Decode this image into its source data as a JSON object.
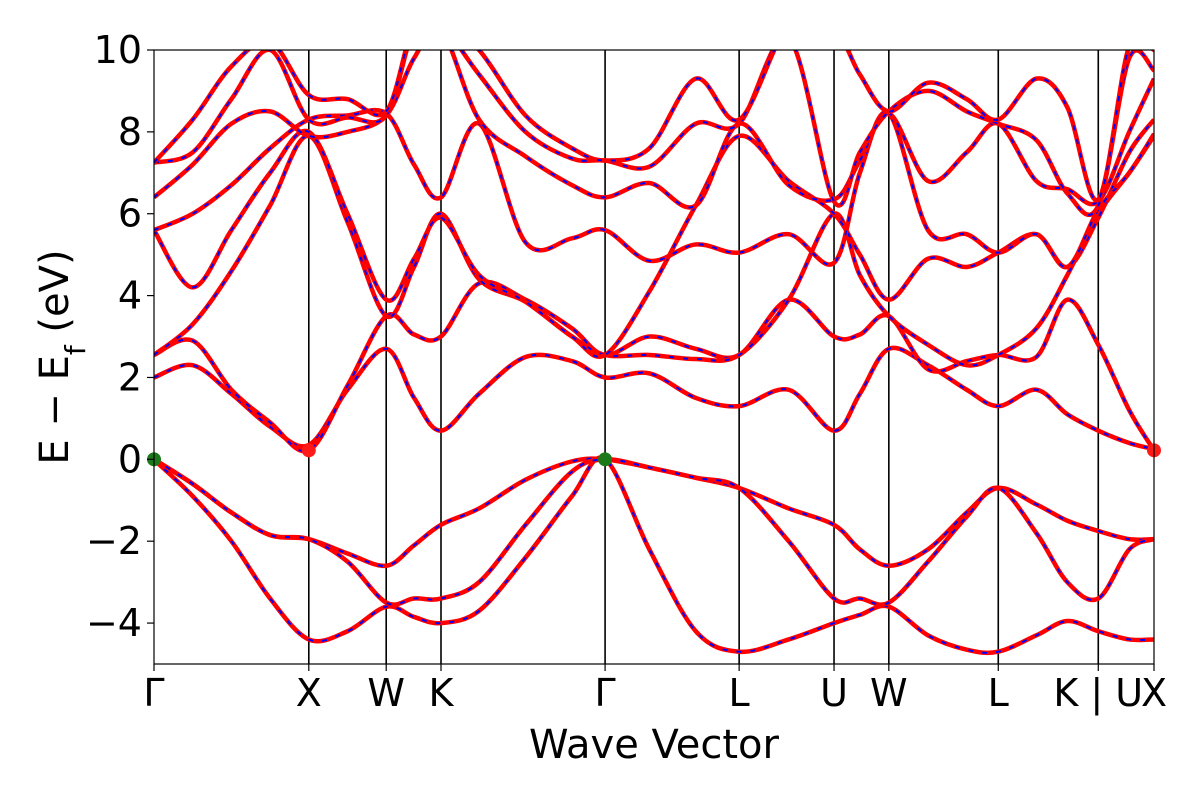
{
  "chart_data": {
    "type": "line",
    "ylabel": "E − E",
    "ylabel_sub": "f",
    "ylabel_unit": " (eV)",
    "xlabel": "Wave Vector",
    "ylim": [
      -5,
      10
    ],
    "y_ticks": [
      -4,
      -2,
      0,
      2,
      4,
      6,
      8,
      10
    ],
    "y_tick_labels": [
      "−4",
      "−2",
      "0",
      "2",
      "4",
      "6",
      "8",
      "10"
    ],
    "x_range": [
      0,
      6.46
    ],
    "kpoints": [
      {
        "label": "Γ",
        "x": 0.0
      },
      {
        "label": "X",
        "x": 1.0
      },
      {
        "label": "W",
        "x": 1.5
      },
      {
        "label": "K",
        "x": 1.854
      },
      {
        "label": "Γ",
        "x": 2.914
      },
      {
        "label": "L",
        "x": 3.78
      },
      {
        "label": "U",
        "x": 4.393
      },
      {
        "label": "W",
        "x": 4.747
      },
      {
        "label": "L",
        "x": 5.454
      },
      {
        "label": "K | U",
        "x": 6.1
      },
      {
        "label": "X",
        "x": 6.46
      }
    ],
    "markers": [
      {
        "x": 0.0,
        "y": 0.0,
        "color": "#1a7a1a"
      },
      {
        "x": 2.914,
        "y": 0.0,
        "color": "#1a7a1a"
      },
      {
        "x": 1.0,
        "y": 0.22,
        "color": "#ff1a1a"
      },
      {
        "x": 6.46,
        "y": 0.22,
        "color": "#ff1a1a"
      }
    ],
    "colors": {
      "band": "#ff0000",
      "band_overlay": "#0000ff"
    },
    "series": [
      {
        "x": [
          0,
          0.25,
          0.5,
          0.75,
          1.0,
          1.25,
          1.5,
          1.68,
          1.854,
          2.1,
          2.4,
          2.7,
          2.914,
          3.2,
          3.5,
          3.78,
          4.1,
          4.393,
          4.56,
          4.747,
          5.0,
          5.25,
          5.454,
          5.7,
          5.9,
          6.1,
          6.3,
          6.46
        ],
        "values": [
          -0.01,
          -0.9,
          -2.0,
          -3.4,
          -4.4,
          -4.2,
          -3.6,
          -3.85,
          -4.0,
          -3.7,
          -2.4,
          -0.9,
          0.0,
          -2.2,
          -4.2,
          -4.7,
          -4.4,
          -4.0,
          -3.8,
          -3.6,
          -4.3,
          -4.65,
          -4.7,
          -4.3,
          -3.95,
          -4.2,
          -4.4,
          -4.4
        ]
      },
      {
        "x": [
          0,
          0.25,
          0.5,
          0.75,
          1.0,
          1.25,
          1.5,
          1.68,
          1.854,
          2.1,
          2.4,
          2.7,
          2.914,
          3.2,
          3.5,
          3.78,
          4.1,
          4.393,
          4.56,
          4.747,
          5.0,
          5.25,
          5.454,
          5.7,
          5.9,
          6.1,
          6.3,
          6.46
        ],
        "values": [
          0.0,
          -0.6,
          -1.3,
          -1.85,
          -1.95,
          -2.3,
          -2.6,
          -2.1,
          -1.6,
          -1.2,
          -0.5,
          -0.05,
          0.0,
          -0.2,
          -0.45,
          -0.7,
          -1.2,
          -1.6,
          -2.2,
          -2.6,
          -2.2,
          -1.3,
          -0.7,
          -1.1,
          -1.5,
          -1.75,
          -1.95,
          -1.95
        ]
      },
      {
        "x": [
          0,
          0.25,
          0.5,
          0.75,
          1.0,
          1.25,
          1.5,
          1.68,
          1.854,
          2.1,
          2.4,
          2.7,
          2.914,
          3.2,
          3.5,
          3.78,
          4.1,
          4.393,
          4.56,
          4.747,
          5.0,
          5.25,
          5.454,
          5.7,
          5.9,
          6.1,
          6.3,
          6.46
        ],
        "values": [
          0.0,
          -0.6,
          -1.3,
          -1.85,
          -1.95,
          -2.5,
          -3.5,
          -3.4,
          -3.4,
          -3.0,
          -1.6,
          -0.3,
          0.0,
          -0.2,
          -0.45,
          -0.7,
          -2.0,
          -3.4,
          -3.4,
          -3.5,
          -2.5,
          -1.4,
          -0.7,
          -1.8,
          -3.0,
          -3.4,
          -2.2,
          -1.95
        ]
      },
      {
        "x": [
          0,
          0.25,
          0.5,
          0.75,
          1.0,
          1.25,
          1.5,
          1.68,
          1.854,
          2.1,
          2.4,
          2.7,
          2.914,
          3.2,
          3.5,
          3.78,
          4.1,
          4.393,
          4.56,
          4.747,
          5.0,
          5.25,
          5.454,
          5.7,
          5.9,
          6.1,
          6.3,
          6.46
        ],
        "values": [
          2.0,
          2.3,
          1.6,
          0.8,
          0.35,
          1.7,
          2.7,
          1.5,
          0.7,
          1.6,
          2.5,
          2.4,
          2.0,
          2.1,
          1.5,
          1.3,
          1.7,
          0.7,
          1.6,
          2.7,
          2.3,
          1.7,
          1.3,
          1.7,
          1.1,
          0.7,
          0.4,
          0.25
        ]
      },
      {
        "x": [
          0,
          0.25,
          0.5,
          0.75,
          1.0,
          1.25,
          1.5,
          1.68,
          1.854,
          2.1,
          2.4,
          2.7,
          2.914,
          3.2,
          3.5,
          3.78,
          4.1,
          4.393,
          4.56,
          4.747,
          5.0,
          5.25,
          5.454,
          5.7,
          5.9,
          6.1,
          6.3,
          6.46
        ],
        "values": [
          2.55,
          2.9,
          1.7,
          0.9,
          0.22,
          1.8,
          3.5,
          3.05,
          3.0,
          4.3,
          3.9,
          3.2,
          2.55,
          3.0,
          2.7,
          2.55,
          3.9,
          3.0,
          3.05,
          3.5,
          2.2,
          2.4,
          2.55,
          2.5,
          3.9,
          2.8,
          1.2,
          0.22
        ]
      },
      {
        "x": [
          0,
          0.25,
          0.5,
          0.75,
          1.0,
          1.25,
          1.5,
          1.68,
          1.854,
          2.1,
          2.4,
          2.7,
          2.914,
          3.2,
          3.5,
          3.78,
          4.1,
          4.393,
          4.56,
          4.747,
          5.0,
          5.25,
          5.454,
          5.7,
          5.9,
          6.1,
          6.3,
          6.46
        ],
        "values": [
          2.55,
          3.3,
          4.6,
          6.2,
          7.9,
          5.8,
          3.5,
          4.7,
          6.0,
          4.4,
          3.85,
          3.0,
          2.55,
          2.55,
          2.45,
          2.55,
          3.9,
          6.0,
          4.5,
          3.5,
          2.8,
          2.3,
          2.55,
          3.2,
          4.5,
          6.0,
          7.0,
          7.9
        ]
      },
      {
        "x": [
          0,
          0.25,
          0.5,
          0.75,
          1.0,
          1.25,
          1.5,
          1.68,
          1.854,
          2.1,
          2.4,
          2.7,
          2.914,
          3.2,
          3.5,
          3.78,
          4.1,
          4.393,
          4.56,
          4.747,
          5.0,
          5.25,
          5.454,
          5.7,
          5.9,
          6.1,
          6.3,
          6.46
        ],
        "values": [
          5.6,
          4.2,
          5.6,
          7.0,
          8.0,
          6.0,
          3.9,
          4.9,
          5.9,
          4.5,
          3.85,
          3.0,
          2.55,
          4.1,
          6.2,
          7.9,
          6.8,
          6.0,
          5.0,
          3.9,
          4.9,
          4.7,
          5.05,
          5.5,
          4.7,
          5.9,
          7.5,
          8.3
        ]
      },
      {
        "x": [
          0,
          0.25,
          0.5,
          0.75,
          1.0,
          1.25,
          1.5,
          1.68,
          1.854,
          2.1,
          2.4,
          2.7,
          2.914,
          3.2,
          3.5,
          3.78,
          4.1,
          4.393,
          4.56,
          4.747,
          5.0,
          5.25,
          5.454,
          5.7,
          5.9,
          6.1,
          6.3,
          6.46
        ],
        "values": [
          5.6,
          6.0,
          6.7,
          7.6,
          8.3,
          8.4,
          8.45,
          7.2,
          6.4,
          8.2,
          5.3,
          5.4,
          5.6,
          4.85,
          5.25,
          5.05,
          5.5,
          4.8,
          7.0,
          8.45,
          5.6,
          5.5,
          5.05,
          5.5,
          4.7,
          6.1,
          7.0,
          7.95
        ]
      },
      {
        "x": [
          0,
          0.25,
          0.5,
          0.75,
          1.0,
          1.25,
          1.5,
          1.68,
          1.854,
          2.1,
          2.4,
          2.7,
          2.914,
          3.2,
          3.5,
          3.78,
          4.1,
          4.393,
          4.56,
          4.747,
          5.0,
          5.25,
          5.454,
          5.7,
          5.9,
          6.1,
          6.3,
          6.46
        ],
        "values": [
          6.4,
          7.2,
          8.2,
          8.5,
          7.9,
          8.0,
          8.4,
          9.8,
          10.5,
          8.3,
          7.4,
          6.7,
          6.4,
          6.75,
          6.2,
          8.2,
          6.7,
          6.35,
          7.3,
          8.45,
          6.8,
          7.5,
          8.2,
          6.8,
          6.6,
          6.3,
          8.0,
          9.3
        ]
      },
      {
        "x": [
          0,
          0.25,
          0.5,
          0.75,
          1.0,
          1.25,
          1.5,
          1.68,
          1.854,
          2.1,
          2.4,
          2.7,
          2.914,
          3.2,
          3.5,
          3.78,
          4.1,
          4.393,
          4.56,
          4.747,
          5.0,
          5.25,
          5.454,
          5.7,
          5.9,
          6.1,
          6.3,
          6.46
        ],
        "values": [
          7.25,
          7.5,
          8.8,
          10.0,
          8.3,
          8.35,
          8.4,
          10.5,
          10.6,
          9.4,
          8.0,
          7.35,
          7.3,
          7.15,
          8.2,
          8.2,
          10.3,
          6.3,
          7.5,
          8.5,
          9.0,
          8.5,
          8.2,
          7.8,
          6.5,
          6.2,
          9.8,
          9.5
        ]
      },
      {
        "x": [
          0,
          0.25,
          0.5,
          0.75,
          1.0,
          1.25,
          1.5,
          1.68,
          1.854,
          2.1,
          2.4,
          2.7,
          2.914,
          3.2,
          3.5,
          3.78,
          4.1,
          4.393,
          4.56,
          4.747,
          5.0,
          5.25,
          5.454,
          5.7,
          5.9,
          6.1,
          6.3,
          6.46
        ],
        "values": [
          7.25,
          8.3,
          9.6,
          10.2,
          8.9,
          8.8,
          8.5,
          10.6,
          10.7,
          10.0,
          8.4,
          7.6,
          7.3,
          7.6,
          9.3,
          8.3,
          10.6,
          10.5,
          9.4,
          8.5,
          9.2,
          8.8,
          8.3,
          9.3,
          8.6,
          6.35,
          10.1,
          10.0
        ]
      }
    ]
  }
}
